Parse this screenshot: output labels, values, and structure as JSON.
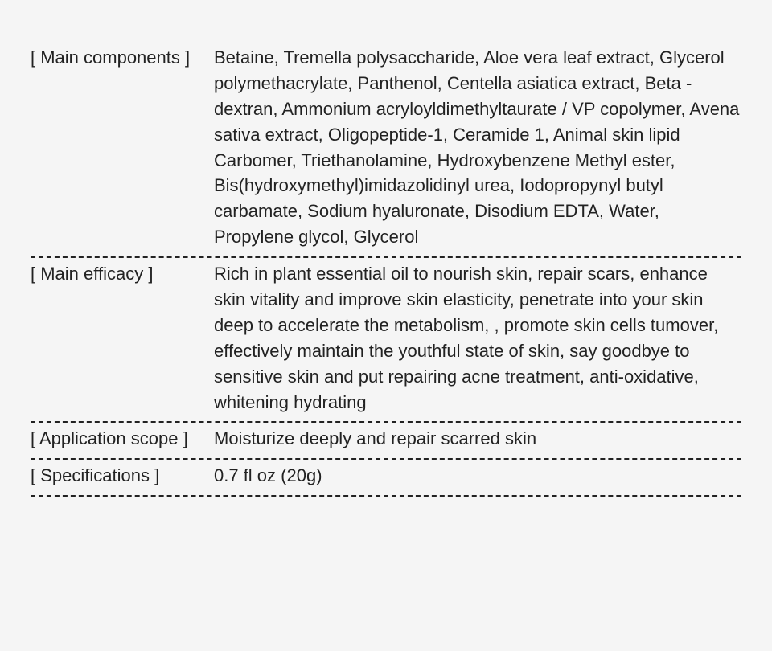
{
  "layout": {
    "background": "#f5f5f5",
    "text_color": "#222222",
    "font_size": 22,
    "divider_style": "dashed",
    "divider_color": "#222222",
    "label_col_width": 228
  },
  "sections": [
    {
      "label": "[ Main components ]",
      "value": "Betaine, Tremella polysaccharide, Aloe vera leaf extract, Glycerol polymethacrylate, Panthenol, Centella asiatica extract, Beta - dextran, Ammonium acryloyldimethyltaurate / VP copolymer, Avena sativa extract, Oligopeptide-1, Ceramide 1, Animal skin lipid Carbomer, Triethanolamine, Hydroxybenzene Methyl ester, Bis(hydroxymethyl)imidazolidinyl urea, Iodopropynyl butyl carbamate, Sodium hyaluronate, Disodium EDTA, Water, Propylene glycol, Glycerol"
    },
    {
      "label": "[ Main efficacy ]",
      "value": "Rich in plant essential oil to nourish skin, repair scars, enhance skin vitality and improve skin elasticity, penetrate into your skin deep to accelerate the metabolism, , promote skin cells tumover, effectively maintain the youthful state of skin, say goodbye to sensitive skin and put repairing acne treatment, anti-oxidative, whitening hydrating"
    },
    {
      "label": "[ Application scope ]",
      "value": "Moisturize deeply and repair scarred skin"
    },
    {
      "label": "[ Specifications ]",
      "value": "0.7 fl oz (20g)"
    }
  ]
}
